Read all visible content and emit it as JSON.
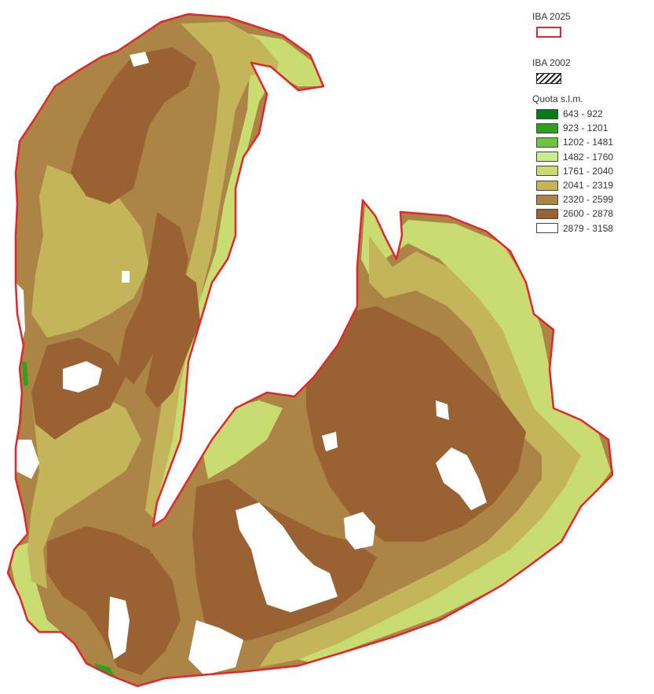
{
  "legend": {
    "iba2025": {
      "title": "IBA 2025",
      "color": "#e2262b"
    },
    "iba2002": {
      "title": "IBA 2002",
      "pattern": "diagonal-hatch"
    },
    "elevation": {
      "title": "Quota s.l.m.",
      "classes": [
        {
          "range": "643 - 922",
          "color": "#0a7a12"
        },
        {
          "range": "923 - 1201",
          "color": "#2ea21f"
        },
        {
          "range": "1202 - 1481",
          "color": "#6cc441"
        },
        {
          "range": "1482 - 1760",
          "color": "#c8ee8e"
        },
        {
          "range": "1761 - 2040",
          "color": "#c9dc72"
        },
        {
          "range": "2041 - 2319",
          "color": "#c4b55a"
        },
        {
          "range": "2320 - 2599",
          "color": "#ac8445"
        },
        {
          "range": "2600 - 2878",
          "color": "#9a6233"
        },
        {
          "range": "2879 - 3158",
          "color": "#ffffff"
        }
      ]
    }
  },
  "map": {
    "boundary_color": "#e2262b",
    "fill_colors": {
      "high": "#9a6233",
      "upper": "#ac8445",
      "mid": "#c4b55a",
      "low": "#c9dc72",
      "peak": "#ffffff",
      "forest": "#2ea21f"
    }
  }
}
